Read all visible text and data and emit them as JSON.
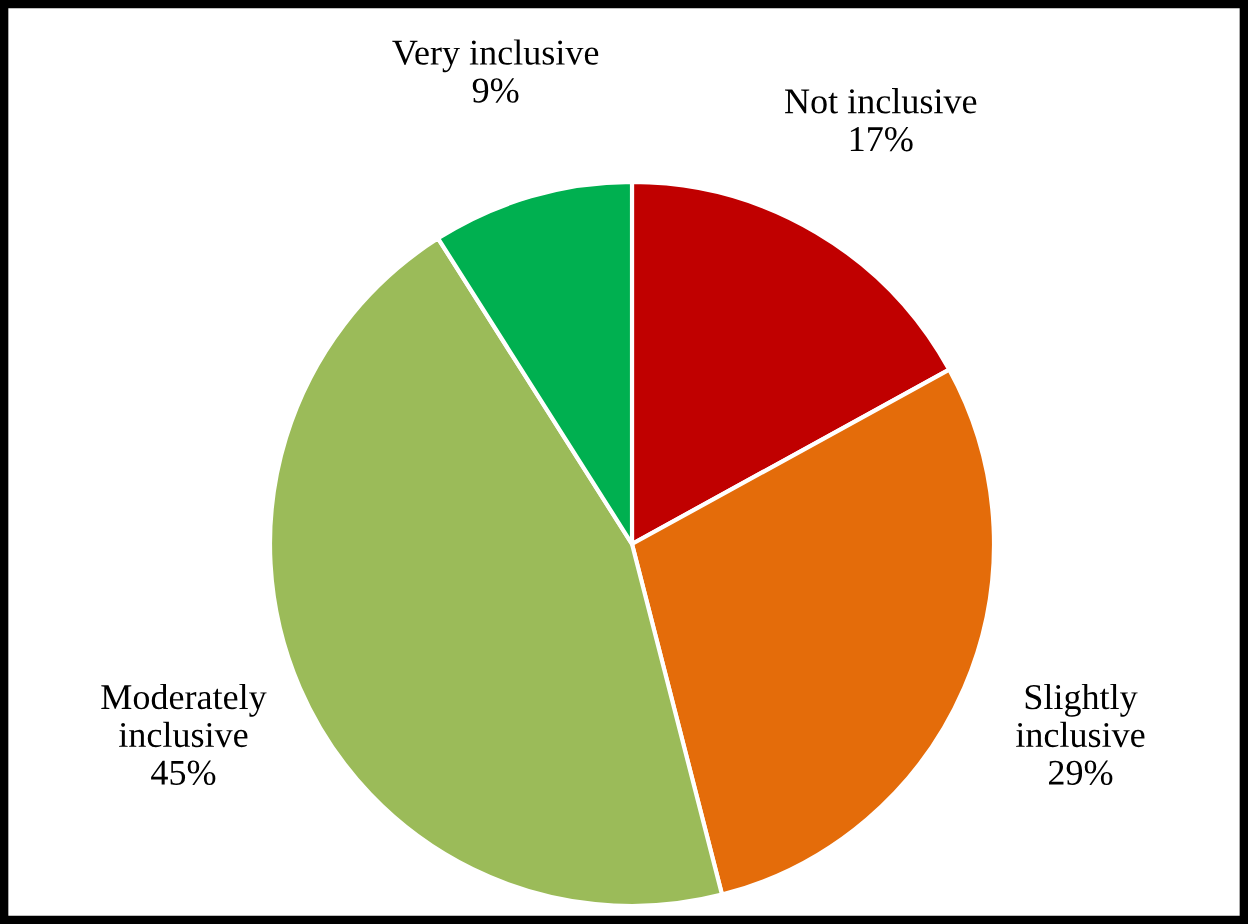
{
  "chart_data": {
    "type": "pie",
    "categories": [
      "Not inclusive",
      "Slightly\ninclusive",
      "Moderately\ninclusive",
      "Very inclusive"
    ],
    "values": [
      17,
      29,
      45,
      9
    ],
    "value_labels": [
      "17%",
      "29%",
      "45%",
      "9%"
    ],
    "colors": [
      "#c00000",
      "#e46c0a",
      "#9bbb59",
      "#00b050"
    ]
  }
}
